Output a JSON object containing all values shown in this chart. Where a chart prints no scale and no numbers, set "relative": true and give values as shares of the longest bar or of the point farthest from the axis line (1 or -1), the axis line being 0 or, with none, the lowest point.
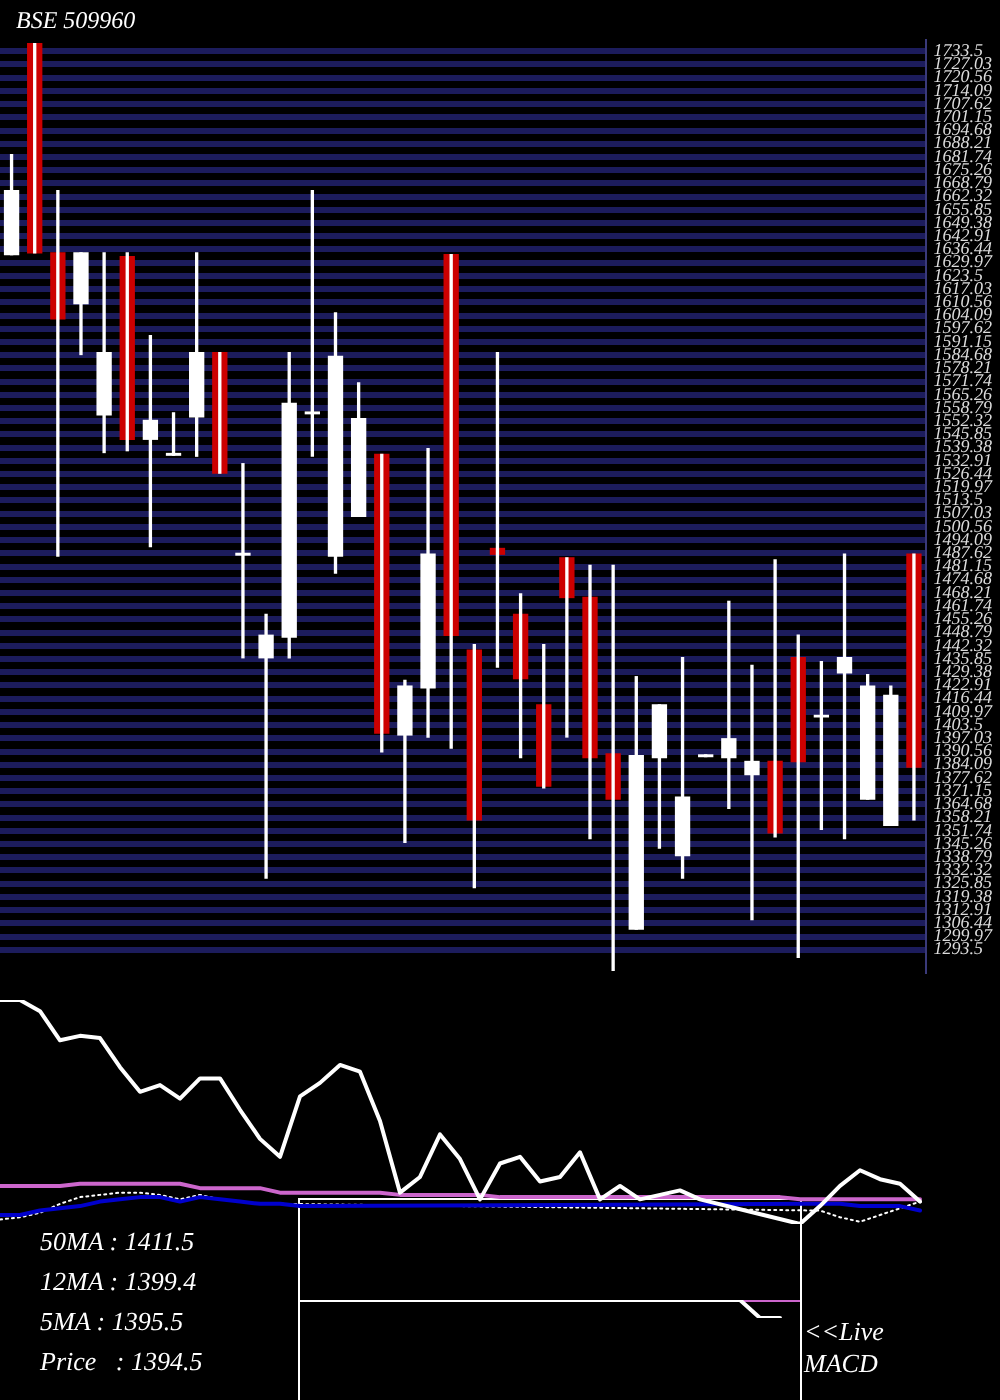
{
  "chart_data": [
    {
      "type": "candlestick",
      "title": "BSE 509960",
      "categories": [
        null,
        null,
        null,
        null,
        null,
        null,
        null,
        null,
        null,
        null,
        null,
        null,
        null,
        null,
        null,
        null,
        null,
        null,
        null,
        null,
        null,
        null,
        null,
        null,
        null,
        null,
        null,
        null,
        null,
        null,
        null,
        null,
        null,
        null,
        null,
        null,
        null,
        null,
        null,
        null
      ],
      "ohlc": [
        [
          1633.9,
          1682.8,
          1633.9,
          1665.2
        ],
        [
          1737.2,
          1737.2,
          1634.8,
          1634.8
        ],
        [
          1634.8,
          1665.2,
          1486.3,
          1602.5
        ],
        [
          1609.9,
          1634.8,
          1585.0,
          1634.8
        ],
        [
          1555.5,
          1634.8,
          1537.0,
          1585.9
        ],
        [
          1632.9,
          1634.8,
          1537.9,
          1543.5
        ],
        [
          1543.5,
          1594.2,
          1490.9,
          1552.7
        ],
        [
          1535.7,
          1556.4,
          1535.7,
          1536.5
        ],
        [
          1554.5,
          1634.8,
          1535.2,
          1585.9
        ],
        [
          1585.9,
          1585.9,
          1526.9,
          1526.9
        ],
        [
          1486.8,
          1531.5,
          1436.5,
          1487.6
        ],
        [
          1436.5,
          1457.7,
          1328.6,
          1447.5
        ],
        [
          1446.6,
          1585.9,
          1436.5,
          1561.0
        ],
        [
          1556.0,
          1665.2,
          1535.2,
          1556.8
        ],
        [
          1486.3,
          1605.3,
          1478.0,
          1584.1
        ],
        [
          1505.7,
          1571.1,
          1505.7,
          1553.6
        ],
        [
          1536.1,
          1536.1,
          1390.4,
          1399.6
        ],
        [
          1398.7,
          1425.4,
          1346.1,
          1422.6
        ],
        [
          1421.7,
          1538.9,
          1397.7,
          1487.2
        ],
        [
          1633.9,
          1633.9,
          1392.2,
          1447.5
        ],
        [
          1440.2,
          1442.9,
          1323.9,
          1357.1
        ],
        [
          1490.0,
          1585.9,
          1431.9,
          1487.2
        ],
        [
          1457.7,
          1467.8,
          1387.6,
          1426.3
        ],
        [
          1413.4,
          1442.9,
          1372.8,
          1373.7
        ],
        [
          1485.4,
          1485.4,
          1397.7,
          1466.0
        ],
        [
          1466.0,
          1481.7,
          1347.9,
          1387.6
        ],
        [
          1389.4,
          1481.7,
          1283.4,
          1367.3
        ],
        [
          1303.6,
          1427.2,
          1303.6,
          1388.5
        ],
        [
          1387.6,
          1413.4,
          1343.3,
          1413.4
        ],
        [
          1339.6,
          1436.5,
          1328.6,
          1368.2
        ],
        [
          1388.1,
          1388.9,
          1388.1,
          1388.9
        ],
        [
          1387.6,
          1464.1,
          1362.7,
          1396.8
        ],
        [
          1379.3,
          1432.8,
          1308.3,
          1385.7
        ],
        [
          1385.7,
          1484.4,
          1348.8,
          1350.7
        ],
        [
          1436.5,
          1447.5,
          1289.8,
          1385.7
        ],
        [
          1407.5,
          1434.6,
          1352.5,
          1408.3
        ],
        [
          1429.1,
          1487.2,
          1347.9,
          1436.5
        ],
        [
          1367.3,
          1428.2,
          1367.3,
          1422.6
        ],
        [
          1354.4,
          1422.6,
          1354.4,
          1418.0
        ],
        [
          1487.2,
          1487.2,
          1357.1,
          1383.0
        ]
      ],
      "colors": [
        "#ffffff",
        "#cc0000",
        "#cc0000",
        "#ffffff",
        "#ffffff",
        "#cc0000",
        "#ffffff",
        "#ffffff",
        "#ffffff",
        "#cc0000",
        "#ffffff",
        "#ffffff",
        "#ffffff",
        "#ffffff",
        "#ffffff",
        "#ffffff",
        "#cc0000",
        "#ffffff",
        "#ffffff",
        "#cc0000",
        "#cc0000",
        "#cc0000",
        "#cc0000",
        "#cc0000",
        "#cc0000",
        "#cc0000",
        "#cc0000",
        "#ffffff",
        "#ffffff",
        "#ffffff",
        "#ffffff",
        "#ffffff",
        "#ffffff",
        "#cc0000",
        "#cc0000",
        "#ffffff",
        "#ffffff",
        "#ffffff",
        "#ffffff",
        "#cc0000"
      ],
      "ylim": [
        1283,
        1739
      ],
      "yticks": [
        1293.5,
        1299.97,
        1306.44,
        1312.91,
        1319.38,
        1325.85,
        1332.32,
        1338.79,
        1345.26,
        1351.74,
        1358.21,
        1364.68,
        1371.15,
        1377.62,
        1384.09,
        1390.56,
        1397.03,
        1403.5,
        1409.97,
        1416.44,
        1422.91,
        1429.38,
        1435.85,
        1442.32,
        1448.79,
        1455.26,
        1461.74,
        1468.21,
        1474.68,
        1481.15,
        1487.62,
        1494.09,
        1500.56,
        1507.03,
        1513.5,
        1519.97,
        1526.44,
        1532.91,
        1539.38,
        1545.85,
        1552.32,
        1558.79,
        1565.26,
        1571.74,
        1578.21,
        1584.68,
        1591.15,
        1597.62,
        1604.09,
        1610.56,
        1617.03,
        1623.5,
        1629.97,
        1636.44,
        1642.91,
        1649.38,
        1655.85,
        1662.32,
        1668.79,
        1675.26,
        1681.74,
        1688.21,
        1694.68,
        1701.15,
        1707.62,
        1714.09,
        1720.56,
        1727.03,
        1733.5
      ],
      "grid": "y",
      "tick_labels": "y"
    },
    {
      "type": "line",
      "relative": true,
      "tick_labels": false,
      "categories": [
        null,
        null,
        null,
        null,
        null,
        null,
        null,
        null,
        null,
        null,
        null,
        null,
        null,
        null,
        null,
        null,
        null,
        null,
        null,
        null,
        null,
        null,
        null,
        null,
        null,
        null,
        null,
        null,
        null,
        null,
        null,
        null,
        null,
        null,
        null,
        null,
        null,
        null,
        null,
        null,
        null,
        null,
        null,
        null,
        null,
        null,
        null
      ],
      "series": [
        {
          "color": "#ffffff",
          "values": [
            1.0,
            1.0,
            0.95,
            0.82,
            0.84,
            0.83,
            0.7,
            0.59,
            0.62,
            0.56,
            0.65,
            0.65,
            0.51,
            0.38,
            0.3,
            0.57,
            0.63,
            0.71,
            0.68,
            0.46,
            0.14,
            0.21,
            0.4,
            0.29,
            0.11,
            0.27,
            0.3,
            0.19,
            0.21,
            0.32,
            0.11,
            0.17,
            0.11,
            0.13,
            0.15,
            0.11,
            null,
            null,
            null,
            null,
            0,
            0.08,
            0.17,
            0.24,
            0.2,
            0.18,
            0.1
          ]
        },
        {
          "color": "#cc66cc",
          "values": [
            0.17,
            0.17,
            0.17,
            0.17,
            0.18,
            0.18,
            0.18,
            0.18,
            0.18,
            0.18,
            0.16,
            0.16,
            0.16,
            0.16,
            0.14,
            0.14,
            0.14,
            0.14,
            0.14,
            0.14,
            0.13,
            0.13,
            0.13,
            0.13,
            0.13,
            0.12,
            0.12,
            0.12,
            0.12,
            0.12,
            0.12,
            0.12,
            0.12,
            0.12,
            0.12,
            0.12,
            0.12,
            0.12,
            0.12,
            0.12,
            0.11,
            0.11,
            0.11,
            0.11,
            0.11,
            0.11,
            0.11
          ]
        },
        {
          "color": "#0000cc",
          "values": [
            0.04,
            0.04,
            0.06,
            0.07,
            0.08,
            0.1,
            0.11,
            0.12,
            0.12,
            0.1,
            0.12,
            0.11,
            0.1,
            0.09,
            0.09,
            0.08,
            null,
            null,
            null,
            null,
            null,
            null,
            null,
            null,
            null,
            null,
            null,
            null,
            null,
            null,
            null,
            null,
            null,
            null,
            null,
            null,
            null,
            null,
            null,
            null,
            0.09,
            0.09,
            0.09,
            0.08,
            0.08,
            0.08,
            0.06
          ]
        },
        {
          "color": "#ffffff",
          "line_style": "dotted",
          "values": [
            0.02,
            0.03,
            0.05,
            0.09,
            0.12,
            0.13,
            0.14,
            0.14,
            0.13,
            0.11,
            0.13,
            0.11,
            0.1,
            0.09,
            0.09,
            null,
            null,
            null,
            null,
            null,
            null,
            null,
            null,
            null,
            null,
            null,
            null,
            null,
            null,
            null,
            null,
            null,
            null,
            null,
            null,
            null,
            null,
            null,
            null,
            null,
            null,
            0.06,
            0.03,
            0.01,
            0.04,
            0.07,
            0.1
          ]
        }
      ],
      "annotations": [
        "50MA : 1411.5",
        "12MA : 1399.4",
        "5MA : 1395.5",
        "Price   : 1394.5",
        "<<Live MACD"
      ]
    },
    {
      "type": "line",
      "relative": true,
      "tick_labels": false,
      "categories": [
        null,
        null,
        null,
        null,
        null,
        null,
        null,
        null,
        null,
        null,
        null,
        null,
        null,
        null,
        null,
        null,
        null,
        null,
        null,
        null,
        null,
        null,
        null,
        null,
        null,
        null
      ],
      "series": [
        {
          "color": "#ffffff",
          "values": [
            1,
            1,
            1,
            1,
            1,
            1,
            1,
            1,
            1,
            1,
            1,
            1,
            1,
            1,
            1,
            1,
            1,
            1,
            1,
            1,
            1,
            1,
            1,
            0,
            0,
            null
          ]
        },
        {
          "color": "#cc66cc",
          "values": [
            null,
            null,
            null,
            null,
            null,
            null,
            null,
            null,
            null,
            null,
            null,
            null,
            null,
            null,
            null,
            null,
            null,
            null,
            null,
            null,
            null,
            null,
            1,
            1,
            1,
            1
          ]
        }
      ]
    }
  ]
}
